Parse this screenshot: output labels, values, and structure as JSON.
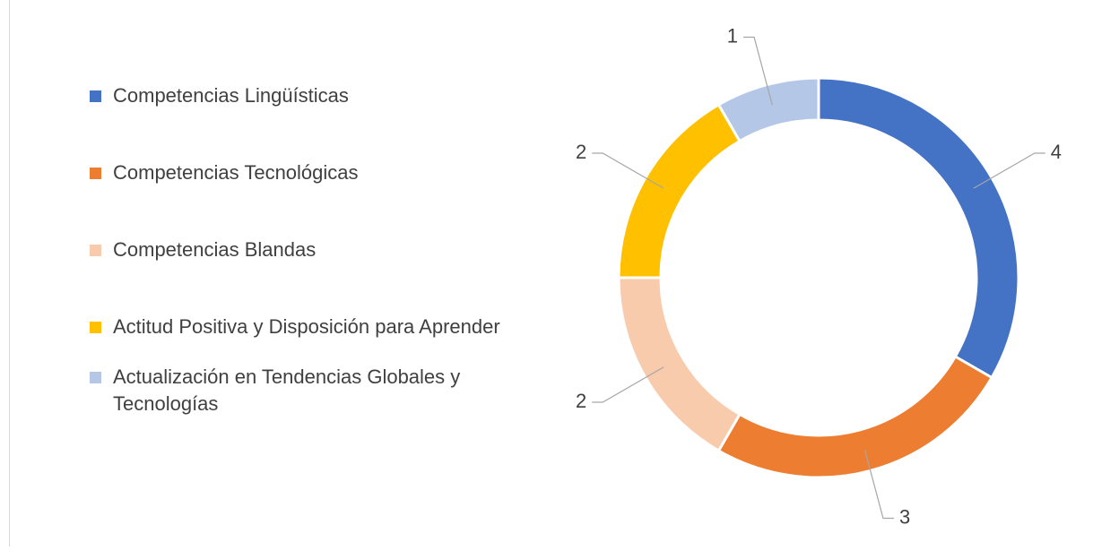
{
  "chart_data": {
    "type": "donut",
    "categories": [
      "Competencias Lingüísticas",
      "Competencias Tecnológicas",
      "Competencias Blandas",
      "Actitud Positiva y Disposición para Aprender",
      "Actualización en Tendencias Globales y Tecnologías"
    ],
    "values": [
      4,
      3,
      2,
      2,
      1
    ],
    "colors": [
      "#4472c4",
      "#ed7d31",
      "#f8cbad",
      "#ffc000",
      "#b4c7e7"
    ],
    "legend": "left"
  }
}
